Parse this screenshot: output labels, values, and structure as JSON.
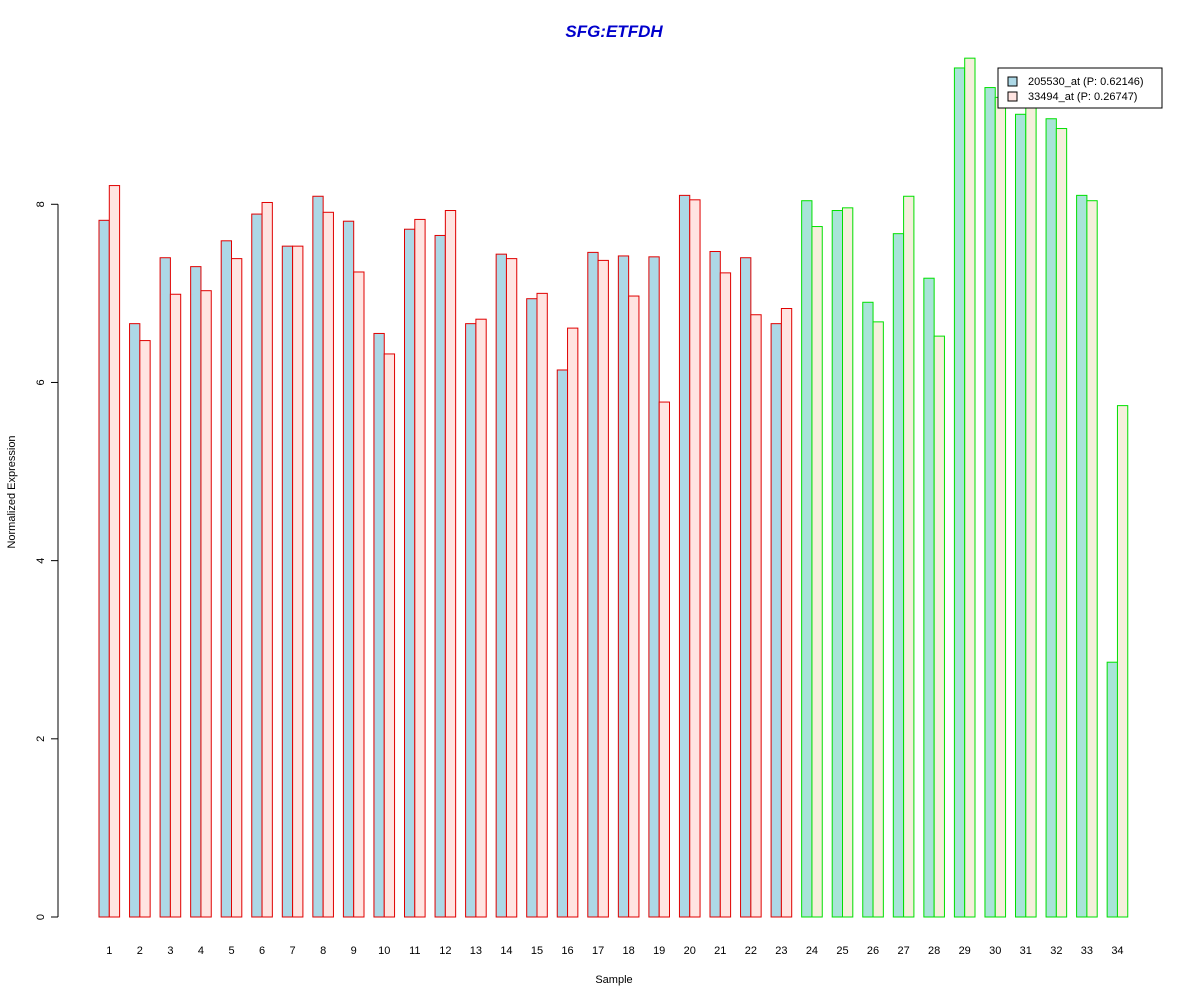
{
  "chart_data": {
    "type": "bar",
    "title": "SFG:ETFDH",
    "xlabel": "Sample",
    "ylabel": "Normalized Expression",
    "ylim": [
      0,
      9.9
    ],
    "yticks": [
      0,
      2,
      4,
      6,
      8
    ],
    "categories": [
      "1",
      "2",
      "3",
      "4",
      "5",
      "6",
      "7",
      "8",
      "9",
      "10",
      "11",
      "12",
      "13",
      "14",
      "15",
      "16",
      "17",
      "18",
      "19",
      "20",
      "21",
      "22",
      "23",
      "24",
      "25",
      "26",
      "27",
      "28",
      "29",
      "30",
      "31",
      "32",
      "33",
      "34"
    ],
    "series": [
      {
        "name": "205530_at (P: 0.62146)",
        "values": [
          7.82,
          6.66,
          7.4,
          7.3,
          7.59,
          7.89,
          7.53,
          8.09,
          7.81,
          6.55,
          7.72,
          7.65,
          6.66,
          7.44,
          6.94,
          6.14,
          7.46,
          7.42,
          7.41,
          8.1,
          7.47,
          7.4,
          6.66,
          8.04,
          7.93,
          6.9,
          7.67,
          7.17,
          9.53,
          9.31,
          9.01,
          8.96,
          8.1,
          2.86
        ]
      },
      {
        "name": "33494_at (P: 0.26747)",
        "values": [
          8.21,
          6.47,
          6.99,
          7.03,
          7.39,
          8.02,
          7.53,
          7.91,
          7.24,
          6.32,
          7.83,
          7.93,
          6.71,
          7.39,
          7.0,
          6.61,
          7.37,
          6.97,
          5.78,
          8.05,
          7.23,
          6.76,
          6.83,
          7.75,
          7.96,
          6.68,
          8.09,
          6.52,
          9.64,
          9.2,
          9.1,
          8.85,
          8.04,
          5.74
        ]
      }
    ],
    "groups": [
      {
        "samples": [
          1,
          23
        ],
        "fills": [
          "#add8e6",
          "#ffe4e1"
        ],
        "border": "#e00000"
      },
      {
        "samples": [
          24,
          34
        ],
        "fills": [
          "#a8e4d8",
          "#f5efdc"
        ],
        "border": "#00e000"
      }
    ],
    "title_color": "#0000cc",
    "legend_position": "top-right",
    "legend_fills": [
      "#add8e6",
      "#ffe4e1"
    ],
    "grid": false
  }
}
